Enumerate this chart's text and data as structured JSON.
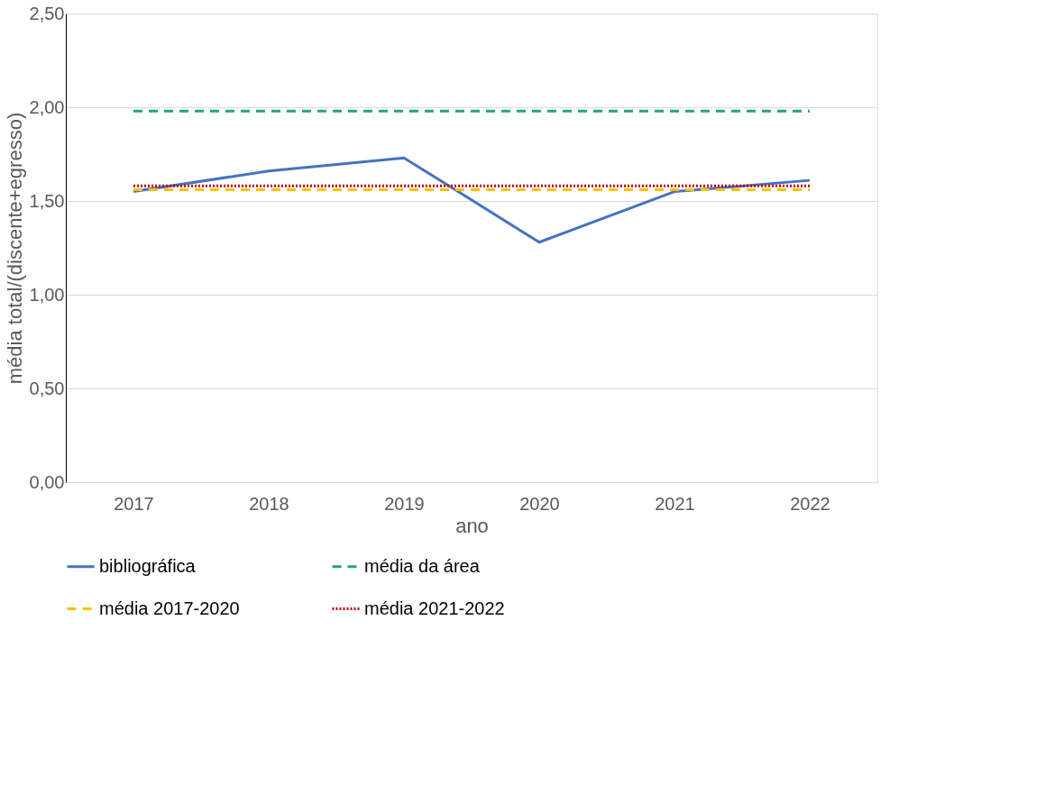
{
  "chart_data": {
    "type": "line",
    "xlabel": "ano",
    "ylabel": "média total/(discente+egresso)",
    "categories": [
      "2017",
      "2018",
      "2019",
      "2020",
      "2021",
      "2022"
    ],
    "series": [
      {
        "name": "bibliográfica",
        "color": "#4472c4",
        "line_style": "solid",
        "values": [
          1.55,
          1.66,
          1.73,
          1.28,
          1.55,
          1.61
        ]
      },
      {
        "name": "média da área",
        "color": "#1fa67a",
        "line_style": "dashed",
        "values": [
          1.98,
          1.98,
          1.98,
          1.98,
          1.98,
          1.98
        ]
      },
      {
        "name": "média  2017-2020",
        "color": "#ffc000",
        "line_style": "dashed",
        "values": [
          1.56,
          1.56,
          1.56,
          1.56,
          1.56,
          1.56
        ]
      },
      {
        "name": "média 2021-2022",
        "color": "#c00000",
        "line_style": "dotted",
        "values": [
          1.58,
          1.58,
          1.58,
          1.58,
          1.58,
          1.58
        ]
      }
    ],
    "ylim": [
      0,
      2.5
    ],
    "yticks": [
      {
        "value": 0,
        "label": "0,00"
      },
      {
        "value": 0.5,
        "label": "0,50"
      },
      {
        "value": 1,
        "label": "1,00"
      },
      {
        "value": 1.5,
        "label": "1,50"
      },
      {
        "value": 2,
        "label": "2,00"
      },
      {
        "value": 2.5,
        "label": "2,50"
      }
    ],
    "grid": "y",
    "legend": "bottom"
  }
}
